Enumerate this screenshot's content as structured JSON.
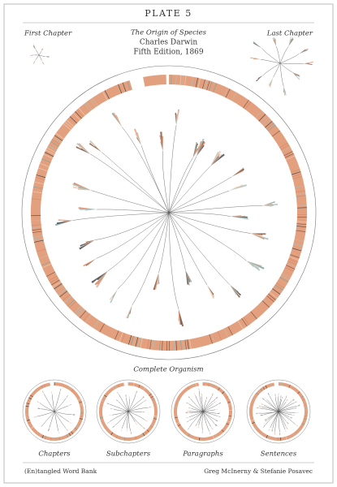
{
  "header": {
    "title": "PLATE 5"
  },
  "labels": {
    "first": "First Chapter",
    "last": "Last Chapter",
    "book": "The Origin of Species",
    "author": "Charles Darwin",
    "edition": "Fifth Edition, 1869",
    "main": "Complete Organism"
  },
  "levels": [
    "Chapters",
    "Subchapters",
    "Paragraphs",
    "Sentences"
  ],
  "footer": {
    "left": "(En)tangled Word Bank",
    "right": "Greg McInerny & Stefanie Posavec"
  }
}
